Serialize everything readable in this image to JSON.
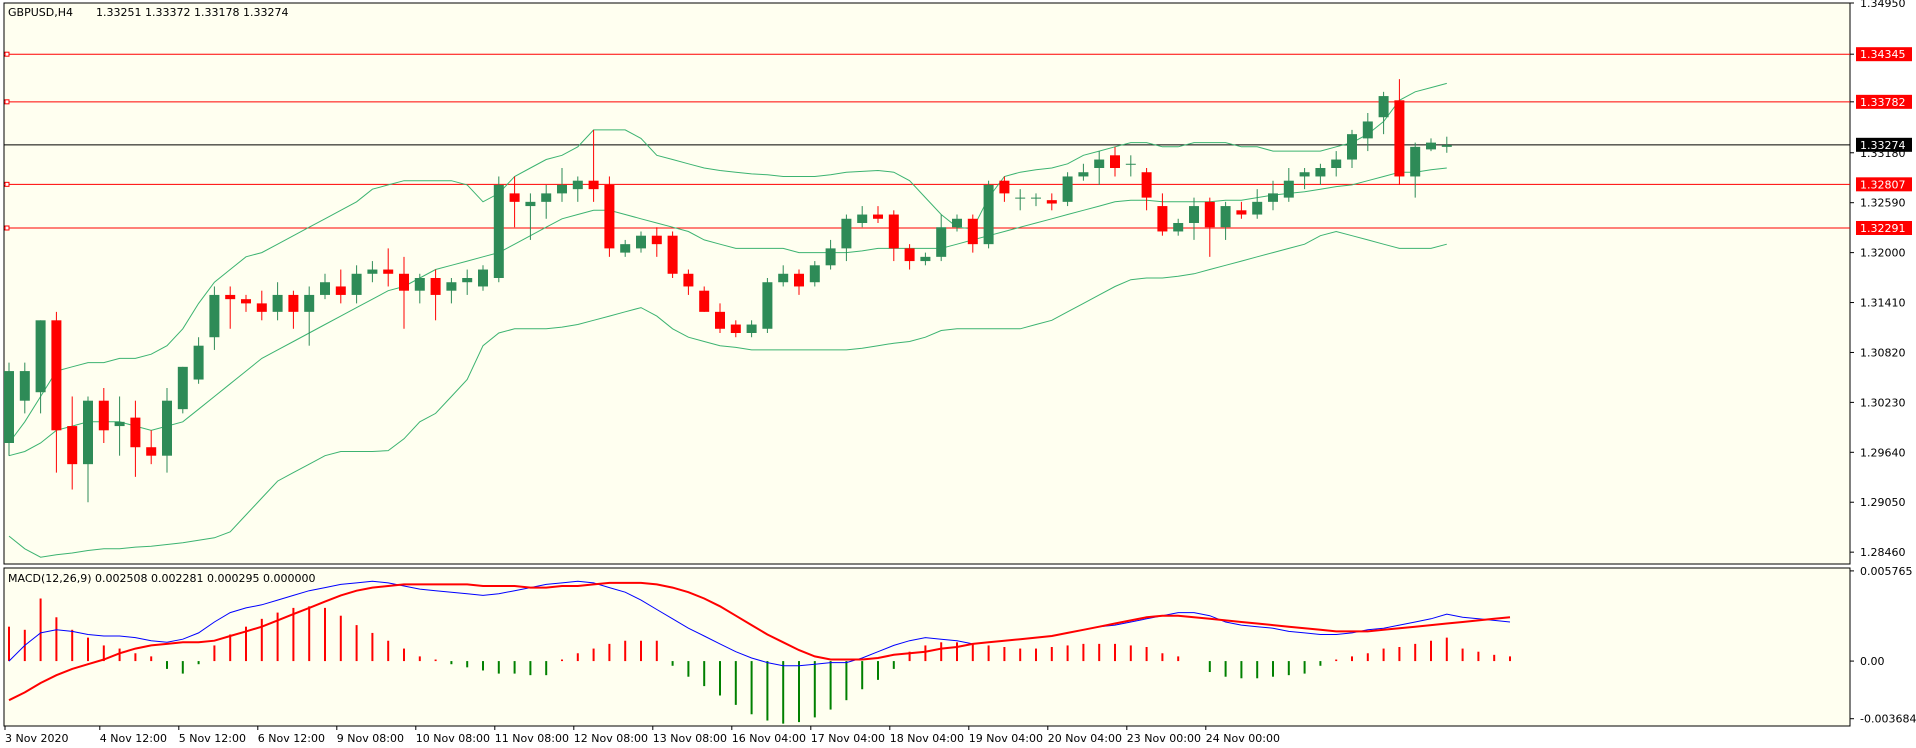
{
  "colors": {
    "background": "#fffff0",
    "frame": "#000000",
    "bull": "#2e8b57",
    "bear": "#ff0000",
    "bands": "#3cb371",
    "level_line": "#ff0000",
    "price_line": "#000000",
    "macd_line": "#0000ff",
    "signal_line": "#ff0000",
    "hist_pos": "#ff0000",
    "hist_neg": "#008000"
  },
  "header": {
    "symbol": "GBPUSD,H4",
    "ohlc": "1.33251 1.33372 1.33178 1.33274"
  },
  "macd_header": "MACD(12,26,9) 0.002508 0.002281 0.000295 0.000000",
  "chart_data": [
    {
      "type": "candlestick",
      "title": "GBPUSD,H4",
      "y_ticks": [
        "1.34950",
        "1.34345",
        "1.33782",
        "1.33180",
        "1.32590",
        "1.32000",
        "1.31410",
        "1.30820",
        "1.30230",
        "1.29640",
        "1.29050",
        "1.28460"
      ],
      "ylim": [
        1.2832,
        1.3495
      ],
      "x_labels": [
        "3 Nov 2020",
        "4 Nov 12:00",
        "5 Nov 12:00",
        "6 Nov 12:00",
        "9 Nov 08:00",
        "10 Nov 08:00",
        "11 Nov 08:00",
        "12 Nov 08:00",
        "13 Nov 08:00",
        "16 Nov 04:00",
        "17 Nov 04:00",
        "18 Nov 04:00",
        "19 Nov 04:00",
        "20 Nov 04:00",
        "23 Nov 00:00",
        "24 Nov 00:00"
      ],
      "horizontal_levels": [
        {
          "price": 1.34345,
          "label": "1.34345"
        },
        {
          "price": 1.33782,
          "label": "1.33782"
        },
        {
          "price": 1.32807,
          "label": "1.32807"
        },
        {
          "price": 1.32291,
          "label": "1.32291"
        }
      ],
      "current_price": {
        "price": 1.33274,
        "label": "1.33274"
      },
      "candles": [
        [
          1.2975,
          1.307,
          1.296,
          1.306
        ],
        [
          1.3025,
          1.307,
          1.301,
          1.306
        ],
        [
          1.3035,
          1.312,
          1.301,
          1.312
        ],
        [
          1.312,
          1.313,
          1.294,
          1.299
        ],
        [
          1.2995,
          1.303,
          1.292,
          1.295
        ],
        [
          1.295,
          1.303,
          1.2905,
          1.3025
        ],
        [
          1.3025,
          1.304,
          1.2975,
          1.299
        ],
        [
          1.2995,
          1.303,
          1.296,
          1.3
        ],
        [
          1.3005,
          1.3025,
          1.2935,
          1.297
        ],
        [
          1.297,
          1.299,
          1.295,
          1.296
        ],
        [
          1.296,
          1.304,
          1.294,
          1.3025
        ],
        [
          1.3015,
          1.3065,
          1.301,
          1.3065
        ],
        [
          1.305,
          1.31,
          1.3045,
          1.309
        ],
        [
          1.31,
          1.316,
          1.3085,
          1.315
        ],
        [
          1.315,
          1.316,
          1.311,
          1.3145
        ],
        [
          1.3145,
          1.315,
          1.313,
          1.314
        ],
        [
          1.314,
          1.3155,
          1.312,
          1.313
        ],
        [
          1.313,
          1.3165,
          1.312,
          1.315
        ],
        [
          1.315,
          1.3155,
          1.311,
          1.313
        ],
        [
          1.313,
          1.316,
          1.309,
          1.315
        ],
        [
          1.315,
          1.3175,
          1.3145,
          1.3165
        ],
        [
          1.316,
          1.318,
          1.314,
          1.315
        ],
        [
          1.315,
          1.3185,
          1.314,
          1.3175
        ],
        [
          1.3175,
          1.319,
          1.3165,
          1.318
        ],
        [
          1.318,
          1.3205,
          1.316,
          1.3175
        ],
        [
          1.3175,
          1.3195,
          1.311,
          1.3155
        ],
        [
          1.3155,
          1.3175,
          1.314,
          1.317
        ],
        [
          1.317,
          1.318,
          1.312,
          1.315
        ],
        [
          1.3155,
          1.317,
          1.314,
          1.3165
        ],
        [
          1.3165,
          1.318,
          1.315,
          1.317
        ],
        [
          1.316,
          1.3185,
          1.3155,
          1.318
        ],
        [
          1.317,
          1.329,
          1.3165,
          1.328
        ],
        [
          1.327,
          1.329,
          1.323,
          1.326
        ],
        [
          1.3255,
          1.327,
          1.3215,
          1.326
        ],
        [
          1.326,
          1.328,
          1.324,
          1.327
        ],
        [
          1.327,
          1.33,
          1.326,
          1.328
        ],
        [
          1.3275,
          1.329,
          1.326,
          1.3285
        ],
        [
          1.3285,
          1.3345,
          1.326,
          1.3275
        ],
        [
          1.328,
          1.329,
          1.3195,
          1.3205
        ],
        [
          1.32,
          1.3215,
          1.3195,
          1.321
        ],
        [
          1.3205,
          1.3225,
          1.32,
          1.322
        ],
        [
          1.322,
          1.323,
          1.3195,
          1.321
        ],
        [
          1.322,
          1.3225,
          1.317,
          1.3175
        ],
        [
          1.3175,
          1.318,
          1.315,
          1.316
        ],
        [
          1.3155,
          1.316,
          1.313,
          1.313
        ],
        [
          1.313,
          1.314,
          1.3105,
          1.311
        ],
        [
          1.3115,
          1.312,
          1.31,
          1.3105
        ],
        [
          1.3105,
          1.312,
          1.31,
          1.3115
        ],
        [
          1.311,
          1.317,
          1.3105,
          1.3165
        ],
        [
          1.3165,
          1.3185,
          1.316,
          1.3175
        ],
        [
          1.3175,
          1.318,
          1.315,
          1.316
        ],
        [
          1.3165,
          1.319,
          1.316,
          1.3185
        ],
        [
          1.3185,
          1.3215,
          1.318,
          1.3205
        ],
        [
          1.3205,
          1.3245,
          1.319,
          1.324
        ],
        [
          1.3235,
          1.3255,
          1.323,
          1.3245
        ],
        [
          1.3245,
          1.3255,
          1.3235,
          1.324
        ],
        [
          1.3245,
          1.325,
          1.319,
          1.3205
        ],
        [
          1.3205,
          1.321,
          1.318,
          1.319
        ],
        [
          1.319,
          1.32,
          1.3185,
          1.3195
        ],
        [
          1.3195,
          1.3245,
          1.319,
          1.323
        ],
        [
          1.323,
          1.3245,
          1.3225,
          1.324
        ],
        [
          1.324,
          1.3245,
          1.32,
          1.321
        ],
        [
          1.321,
          1.3285,
          1.3205,
          1.328
        ],
        [
          1.3285,
          1.329,
          1.326,
          1.327
        ],
        [
          1.3265,
          1.3275,
          1.325,
          1.3265
        ],
        [
          1.3265,
          1.327,
          1.3255,
          1.3265
        ],
        [
          1.3262,
          1.327,
          1.325,
          1.3258
        ],
        [
          1.326,
          1.3295,
          1.3255,
          1.329
        ],
        [
          1.329,
          1.3305,
          1.3285,
          1.3295
        ],
        [
          1.33,
          1.332,
          1.328,
          1.331
        ],
        [
          1.3315,
          1.3325,
          1.329,
          1.33
        ],
        [
          1.3305,
          1.3315,
          1.329,
          1.3305
        ],
        [
          1.3295,
          1.33,
          1.325,
          1.3265
        ],
        [
          1.3255,
          1.327,
          1.322,
          1.3225
        ],
        [
          1.3225,
          1.324,
          1.322,
          1.3235
        ],
        [
          1.3235,
          1.3265,
          1.3215,
          1.3255
        ],
        [
          1.326,
          1.3265,
          1.3195,
          1.323
        ],
        [
          1.323,
          1.326,
          1.3215,
          1.3255
        ],
        [
          1.325,
          1.326,
          1.324,
          1.3245
        ],
        [
          1.3245,
          1.3275,
          1.324,
          1.326
        ],
        [
          1.326,
          1.3285,
          1.325,
          1.327
        ],
        [
          1.3265,
          1.33,
          1.326,
          1.3285
        ],
        [
          1.329,
          1.33,
          1.3275,
          1.3295
        ],
        [
          1.329,
          1.3305,
          1.328,
          1.33
        ],
        [
          1.33,
          1.332,
          1.329,
          1.331
        ],
        [
          1.331,
          1.3345,
          1.33,
          1.334
        ],
        [
          1.3335,
          1.3365,
          1.332,
          1.3355
        ],
        [
          1.336,
          1.339,
          1.334,
          1.3385
        ],
        [
          1.338,
          1.3405,
          1.328,
          1.329
        ],
        [
          1.329,
          1.333,
          1.3265,
          1.3325
        ],
        [
          1.3322,
          1.3335,
          1.332,
          1.333
        ],
        [
          1.3325,
          1.3337,
          1.3318,
          1.3327
        ]
      ],
      "bollinger": {
        "upper": [
          1.2975,
          1.3,
          1.303,
          1.306,
          1.3065,
          1.307,
          1.307,
          1.3075,
          1.3075,
          1.308,
          1.309,
          1.311,
          1.314,
          1.3165,
          1.318,
          1.3195,
          1.32,
          1.321,
          1.322,
          1.323,
          1.324,
          1.325,
          1.326,
          1.3275,
          1.328,
          1.3285,
          1.3285,
          1.3285,
          1.3285,
          1.328,
          1.326,
          1.327,
          1.329,
          1.33,
          1.331,
          1.3315,
          1.3325,
          1.3345,
          1.3345,
          1.3345,
          1.3335,
          1.3315,
          1.331,
          1.3305,
          1.33,
          1.3297,
          1.3295,
          1.3293,
          1.3292,
          1.329,
          1.329,
          1.329,
          1.3292,
          1.3295,
          1.3296,
          1.3297,
          1.3295,
          1.3285,
          1.3265,
          1.3245,
          1.323,
          1.3228,
          1.3265,
          1.329,
          1.3295,
          1.3298,
          1.33,
          1.3305,
          1.3315,
          1.332,
          1.3325,
          1.333,
          1.333,
          1.3325,
          1.3325,
          1.333,
          1.333,
          1.333,
          1.3325,
          1.3325,
          1.332,
          1.332,
          1.332,
          1.332,
          1.3325,
          1.333,
          1.334,
          1.3355,
          1.338,
          1.339,
          1.3395,
          1.34
        ],
        "middle": [
          1.296,
          1.2965,
          1.2975,
          1.299,
          1.2995,
          1.3,
          1.3,
          1.3,
          1.2995,
          1.299,
          1.2995,
          1.3,
          1.3015,
          1.303,
          1.3045,
          1.306,
          1.3075,
          1.3085,
          1.3095,
          1.3105,
          1.3115,
          1.3125,
          1.3135,
          1.3145,
          1.3155,
          1.316,
          1.317,
          1.318,
          1.3185,
          1.319,
          1.3195,
          1.32,
          1.321,
          1.322,
          1.323,
          1.324,
          1.3245,
          1.325,
          1.325,
          1.3245,
          1.324,
          1.3235,
          1.323,
          1.3225,
          1.3215,
          1.321,
          1.3205,
          1.3205,
          1.3205,
          1.3205,
          1.32,
          1.32,
          1.32,
          1.32,
          1.3202,
          1.3205,
          1.3205,
          1.3205,
          1.3205,
          1.3205,
          1.321,
          1.3215,
          1.322,
          1.3225,
          1.323,
          1.3235,
          1.324,
          1.3245,
          1.325,
          1.3255,
          1.326,
          1.3262,
          1.3262,
          1.326,
          1.326,
          1.326,
          1.326,
          1.3262,
          1.3262,
          1.3265,
          1.3268,
          1.327,
          1.3272,
          1.3275,
          1.3278,
          1.328,
          1.3285,
          1.329,
          1.3295,
          1.3295,
          1.3298,
          1.33
        ],
        "lower": [
          1.2865,
          1.285,
          1.284,
          1.2843,
          1.2845,
          1.2848,
          1.285,
          1.285,
          1.2852,
          1.2853,
          1.2855,
          1.2857,
          1.286,
          1.2863,
          1.287,
          1.289,
          1.291,
          1.293,
          1.294,
          1.295,
          1.296,
          1.2965,
          1.2965,
          1.2965,
          1.2966,
          1.298,
          1.3,
          1.301,
          1.303,
          1.305,
          1.309,
          1.3105,
          1.311,
          1.311,
          1.311,
          1.3112,
          1.3115,
          1.312,
          1.3125,
          1.313,
          1.3135,
          1.3125,
          1.311,
          1.31,
          1.3095,
          1.309,
          1.3088,
          1.3085,
          1.3085,
          1.3085,
          1.3085,
          1.3085,
          1.3085,
          1.3085,
          1.3087,
          1.309,
          1.3093,
          1.3095,
          1.31,
          1.3108,
          1.311,
          1.311,
          1.311,
          1.311,
          1.311,
          1.3115,
          1.312,
          1.313,
          1.314,
          1.315,
          1.316,
          1.3168,
          1.317,
          1.317,
          1.3172,
          1.3175,
          1.318,
          1.3185,
          1.319,
          1.3195,
          1.32,
          1.3205,
          1.321,
          1.322,
          1.3225,
          1.322,
          1.3215,
          1.321,
          1.3205,
          1.3205,
          1.3205,
          1.321
        ]
      }
    },
    {
      "type": "macd",
      "title": "MACD(12,26,9) 0.002508 0.002281 0.000295 0.000000",
      "y_ticks": [
        "0.005765",
        "0.00",
        "-0.003684"
      ],
      "ylim": [
        -0.00415,
        0.00595
      ],
      "histogram": [
        0.0022,
        0.002,
        0.004,
        0.0028,
        0.002,
        0.0015,
        0.001,
        0.0008,
        0.0005,
        0.0003,
        -0.0005,
        -0.0008,
        -0.0002,
        0.001,
        0.0017,
        0.0022,
        0.0027,
        0.0031,
        0.0034,
        0.0035,
        0.0034,
        0.0029,
        0.0023,
        0.0018,
        0.0013,
        0.0008,
        0.0003,
        0.0001,
        -0.0002,
        -0.0004,
        -0.0006,
        -0.0008,
        -0.0008,
        -0.0009,
        -0.0009,
        0.0001,
        0.0005,
        0.0008,
        0.0011,
        0.0013,
        0.0013,
        0.0013,
        -0.0003,
        -0.001,
        -0.0016,
        -0.0022,
        -0.0028,
        -0.0034,
        -0.0038,
        -0.004,
        -0.0039,
        -0.0036,
        -0.0031,
        -0.0025,
        -0.0018,
        -0.0012,
        -0.0005,
        0.0006,
        0.001,
        0.0012,
        0.0012,
        0.0011,
        0.001,
        0.0009,
        0.0008,
        0.0008,
        0.0009,
        0.001,
        0.0011,
        0.0011,
        0.0011,
        0.001,
        0.0009,
        0.0005,
        0.0003,
        0.0,
        -0.0007,
        -0.001,
        -0.0011,
        -0.0011,
        -0.001,
        -0.0009,
        -0.0008,
        -0.0003,
        0.0001,
        0.0003,
        0.0005,
        0.0008,
        0.0009,
        0.0011,
        0.0013,
        0.0015,
        0.0008,
        0.0006,
        0.0004,
        0.0003
      ],
      "macd": [
        0.0,
        0.001,
        0.0018,
        0.002,
        0.0019,
        0.0017,
        0.0016,
        0.0016,
        0.0015,
        0.0013,
        0.0012,
        0.0014,
        0.0018,
        0.0025,
        0.0031,
        0.0034,
        0.0036,
        0.0039,
        0.0042,
        0.0045,
        0.0047,
        0.0049,
        0.005,
        0.0051,
        0.005,
        0.0048,
        0.0046,
        0.0045,
        0.0044,
        0.0043,
        0.0042,
        0.0043,
        0.0045,
        0.0047,
        0.0049,
        0.005,
        0.0051,
        0.005,
        0.0047,
        0.0044,
        0.0039,
        0.0033,
        0.0027,
        0.0021,
        0.0016,
        0.0011,
        0.0006,
        0.0002,
        -0.0001,
        -0.0003,
        -0.0003,
        -0.0002,
        -0.0001,
        -0.0001,
        0.0002,
        0.0006,
        0.001,
        0.0013,
        0.0015,
        0.0014,
        0.0013,
        0.0011,
        0.0012,
        0.0013,
        0.0014,
        0.0015,
        0.0016,
        0.0018,
        0.002,
        0.0022,
        0.0023,
        0.0025,
        0.0027,
        0.0029,
        0.0031,
        0.0031,
        0.0029,
        0.0025,
        0.0023,
        0.0022,
        0.0021,
        0.0019,
        0.0018,
        0.0017,
        0.0017,
        0.0018,
        0.002,
        0.0021,
        0.0023,
        0.0025,
        0.0027,
        0.003,
        0.0028,
        0.0027,
        0.0026,
        0.0025
      ],
      "signal": [
        -0.0025,
        -0.002,
        -0.0014,
        -0.0009,
        -0.0005,
        -0.0002,
        0.0001,
        0.0005,
        0.0008,
        0.001,
        0.0011,
        0.0012,
        0.0012,
        0.0013,
        0.0016,
        0.0019,
        0.0022,
        0.0026,
        0.003,
        0.0034,
        0.0038,
        0.0042,
        0.0045,
        0.0047,
        0.0048,
        0.0049,
        0.0049,
        0.0049,
        0.0049,
        0.0049,
        0.0048,
        0.0048,
        0.0048,
        0.0047,
        0.0047,
        0.0048,
        0.0048,
        0.0049,
        0.005,
        0.005,
        0.005,
        0.0049,
        0.0047,
        0.0044,
        0.004,
        0.0035,
        0.0029,
        0.0023,
        0.0017,
        0.0012,
        0.0007,
        0.0003,
        0.0001,
        0.0001,
        0.0001,
        0.0002,
        0.0004,
        0.0005,
        0.0006,
        0.0008,
        0.0009,
        0.0011,
        0.0012,
        0.0013,
        0.0014,
        0.0015,
        0.0016,
        0.0018,
        0.002,
        0.0022,
        0.0024,
        0.0026,
        0.0028,
        0.0029,
        0.0029,
        0.0028,
        0.0027,
        0.0026,
        0.0025,
        0.0024,
        0.0023,
        0.0022,
        0.0021,
        0.002,
        0.0019,
        0.0019,
        0.0019,
        0.002,
        0.0021,
        0.0022,
        0.0023,
        0.0024,
        0.0025,
        0.0026,
        0.0027,
        0.0028
      ]
    }
  ]
}
